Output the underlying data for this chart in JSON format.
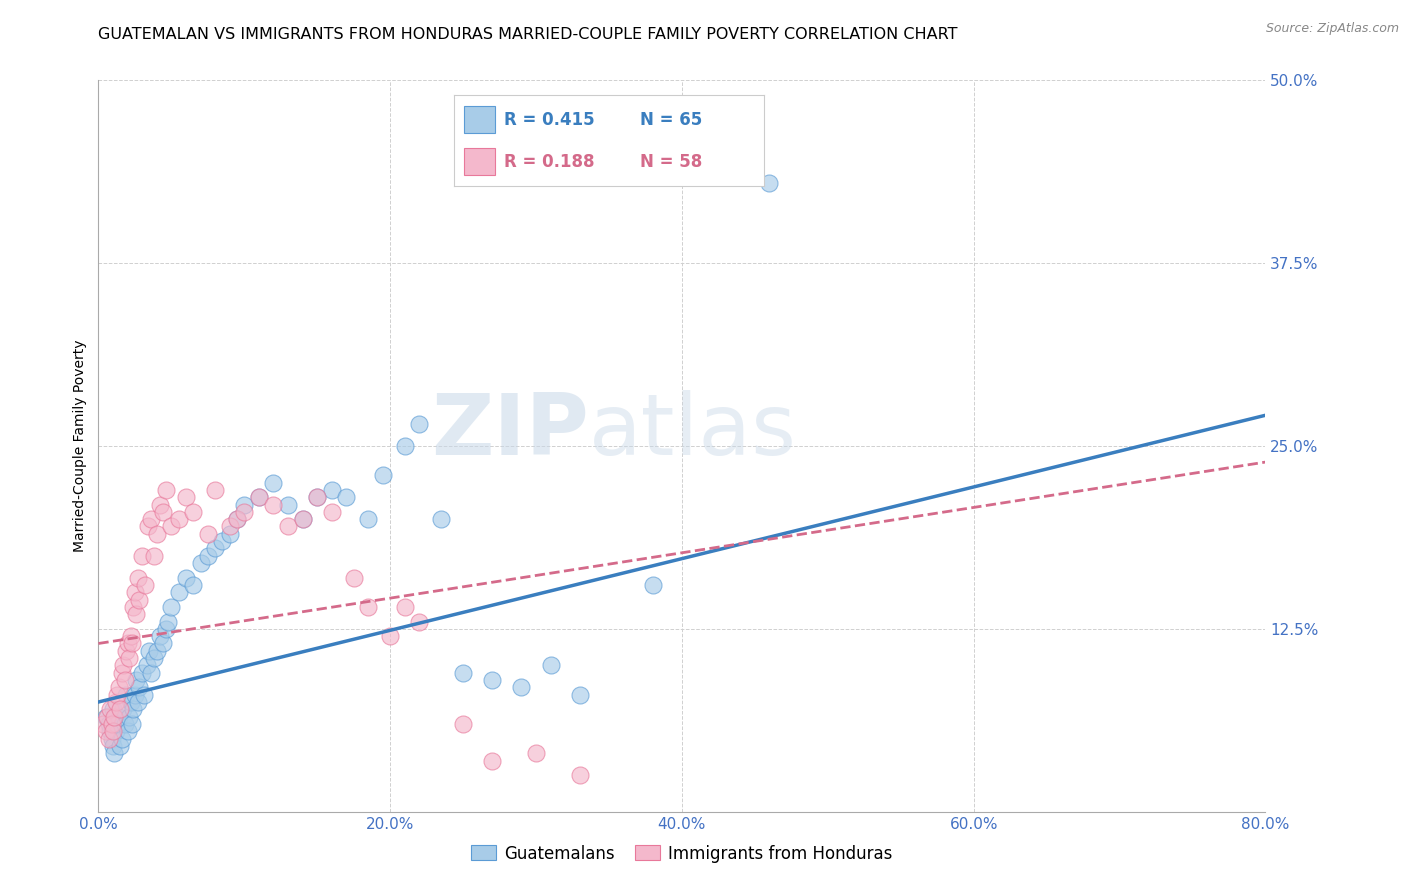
{
  "title": "GUATEMALAN VS IMMIGRANTS FROM HONDURAS MARRIED-COUPLE FAMILY POVERTY CORRELATION CHART",
  "source": "Source: ZipAtlas.com",
  "ylabel": "Married-Couple Family Poverty",
  "xlim": [
    0,
    0.8
  ],
  "ylim": [
    0,
    0.5
  ],
  "xticks": [
    0.0,
    0.2,
    0.4,
    0.6,
    0.8
  ],
  "yticks": [
    0.0,
    0.125,
    0.25,
    0.375,
    0.5
  ],
  "xticklabels": [
    "0.0%",
    "20.0%",
    "40.0%",
    "60.0%",
    "80.0%"
  ],
  "yticklabels": [
    "",
    "12.5%",
    "25.0%",
    "37.5%",
    "50.0%"
  ],
  "blue_R": 0.415,
  "blue_N": 65,
  "pink_R": 0.188,
  "pink_N": 58,
  "blue_color": "#a8cce8",
  "pink_color": "#f4b8cc",
  "blue_edge_color": "#5b9bd5",
  "pink_edge_color": "#e8789a",
  "blue_line_color": "#3a7ebf",
  "pink_line_color": "#d46a8a",
  "legend_label_blue": "Guatemalans",
  "legend_label_pink": "Immigrants from Honduras",
  "watermark_zip": "ZIP",
  "watermark_atlas": "atlas",
  "background_color": "#ffffff",
  "grid_color": "#d0d0d0",
  "tick_color": "#4472c4",
  "title_fontsize": 11.5,
  "axis_label_fontsize": 10,
  "tick_fontsize": 11,
  "blue_line_intercept": 0.075,
  "blue_line_slope_per_unit": 0.245,
  "pink_line_intercept": 0.115,
  "pink_line_slope_per_unit": 0.155,
  "blue_scatter_x": [
    0.005,
    0.007,
    0.008,
    0.009,
    0.01,
    0.01,
    0.011,
    0.012,
    0.013,
    0.014,
    0.015,
    0.016,
    0.017,
    0.018,
    0.019,
    0.02,
    0.021,
    0.022,
    0.023,
    0.024,
    0.025,
    0.026,
    0.027,
    0.028,
    0.03,
    0.031,
    0.033,
    0.035,
    0.036,
    0.038,
    0.04,
    0.042,
    0.044,
    0.046,
    0.048,
    0.05,
    0.055,
    0.06,
    0.065,
    0.07,
    0.075,
    0.08,
    0.085,
    0.09,
    0.095,
    0.1,
    0.11,
    0.12,
    0.13,
    0.14,
    0.15,
    0.16,
    0.17,
    0.185,
    0.195,
    0.21,
    0.22,
    0.235,
    0.25,
    0.27,
    0.29,
    0.31,
    0.33,
    0.38,
    0.46
  ],
  "blue_scatter_y": [
    0.065,
    0.06,
    0.055,
    0.05,
    0.045,
    0.07,
    0.04,
    0.055,
    0.06,
    0.065,
    0.045,
    0.05,
    0.07,
    0.06,
    0.08,
    0.055,
    0.065,
    0.075,
    0.06,
    0.07,
    0.08,
    0.09,
    0.075,
    0.085,
    0.095,
    0.08,
    0.1,
    0.11,
    0.095,
    0.105,
    0.11,
    0.12,
    0.115,
    0.125,
    0.13,
    0.14,
    0.15,
    0.16,
    0.155,
    0.17,
    0.175,
    0.18,
    0.185,
    0.19,
    0.2,
    0.21,
    0.215,
    0.225,
    0.21,
    0.2,
    0.215,
    0.22,
    0.215,
    0.2,
    0.23,
    0.25,
    0.265,
    0.2,
    0.095,
    0.09,
    0.085,
    0.1,
    0.08,
    0.155,
    0.43
  ],
  "pink_scatter_x": [
    0.003,
    0.005,
    0.006,
    0.007,
    0.008,
    0.009,
    0.01,
    0.011,
    0.012,
    0.013,
    0.014,
    0.015,
    0.016,
    0.017,
    0.018,
    0.019,
    0.02,
    0.021,
    0.022,
    0.023,
    0.024,
    0.025,
    0.026,
    0.027,
    0.028,
    0.03,
    0.032,
    0.034,
    0.036,
    0.038,
    0.04,
    0.042,
    0.044,
    0.046,
    0.05,
    0.055,
    0.06,
    0.065,
    0.075,
    0.08,
    0.09,
    0.095,
    0.1,
    0.11,
    0.12,
    0.13,
    0.14,
    0.15,
    0.16,
    0.175,
    0.185,
    0.2,
    0.21,
    0.22,
    0.25,
    0.27,
    0.3,
    0.33
  ],
  "pink_scatter_y": [
    0.06,
    0.055,
    0.065,
    0.05,
    0.07,
    0.06,
    0.055,
    0.065,
    0.075,
    0.08,
    0.085,
    0.07,
    0.095,
    0.1,
    0.09,
    0.11,
    0.115,
    0.105,
    0.12,
    0.115,
    0.14,
    0.15,
    0.135,
    0.16,
    0.145,
    0.175,
    0.155,
    0.195,
    0.2,
    0.175,
    0.19,
    0.21,
    0.205,
    0.22,
    0.195,
    0.2,
    0.215,
    0.205,
    0.19,
    0.22,
    0.195,
    0.2,
    0.205,
    0.215,
    0.21,
    0.195,
    0.2,
    0.215,
    0.205,
    0.16,
    0.14,
    0.12,
    0.14,
    0.13,
    0.06,
    0.035,
    0.04,
    0.025
  ]
}
